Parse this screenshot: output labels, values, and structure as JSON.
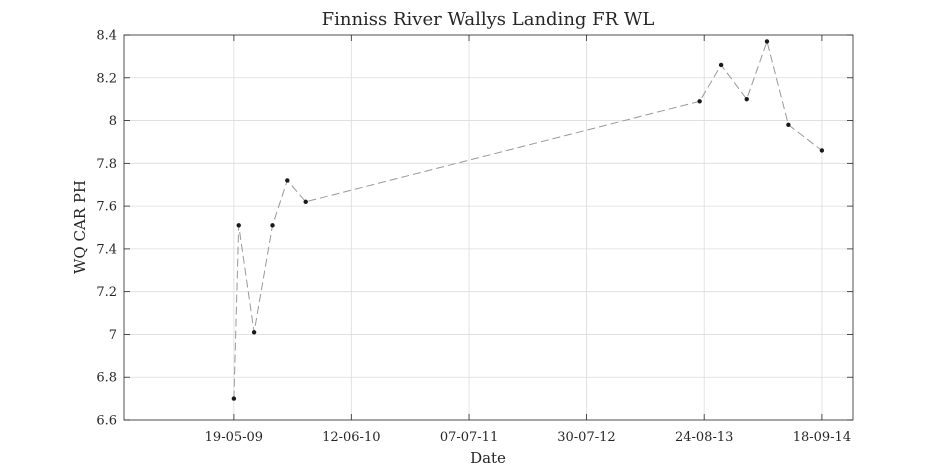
{
  "chart_data": {
    "type": "line",
    "title": "Finniss River Wallys Landing FR WL",
    "xlabel": "Date",
    "ylabel": "WQ CAR PH",
    "x_tick_labels": [
      "19-05-09",
      "12-06-10",
      "07-07-11",
      "30-07-12",
      "24-08-13",
      "18-09-14"
    ],
    "x_tick_dates": [
      "2009-05-19",
      "2010-06-12",
      "2011-07-07",
      "2012-07-30",
      "2013-08-24",
      "2014-09-18"
    ],
    "xlim": [
      "2008-05-20",
      "2014-12-30"
    ],
    "ylim": [
      6.6,
      8.4
    ],
    "y_ticks": [
      6.6,
      6.8,
      7,
      7.2,
      7.4,
      7.6,
      7.8,
      8,
      8.2,
      8.4
    ],
    "y_tick_labels": [
      "6.6",
      "6.8",
      "7",
      "7.2",
      "7.4",
      "7.6",
      "7.8",
      "8",
      "8.2",
      "8.4"
    ],
    "grid": true,
    "line_style": "dashed",
    "line_color": "#999999",
    "marker_color": "#1a1a1a",
    "series": [
      {
        "x": [
          "2009-05-19",
          "2009-06-04",
          "2009-07-25",
          "2009-09-24",
          "2009-11-12",
          "2010-01-12",
          "2013-08-09",
          "2013-10-19",
          "2014-01-12",
          "2014-03-20",
          "2014-05-30",
          "2014-09-18"
        ],
        "y": [
          6.7,
          7.51,
          7.01,
          7.51,
          7.72,
          7.62,
          8.09,
          8.26,
          8.1,
          8.37,
          7.98,
          7.86
        ]
      }
    ]
  }
}
